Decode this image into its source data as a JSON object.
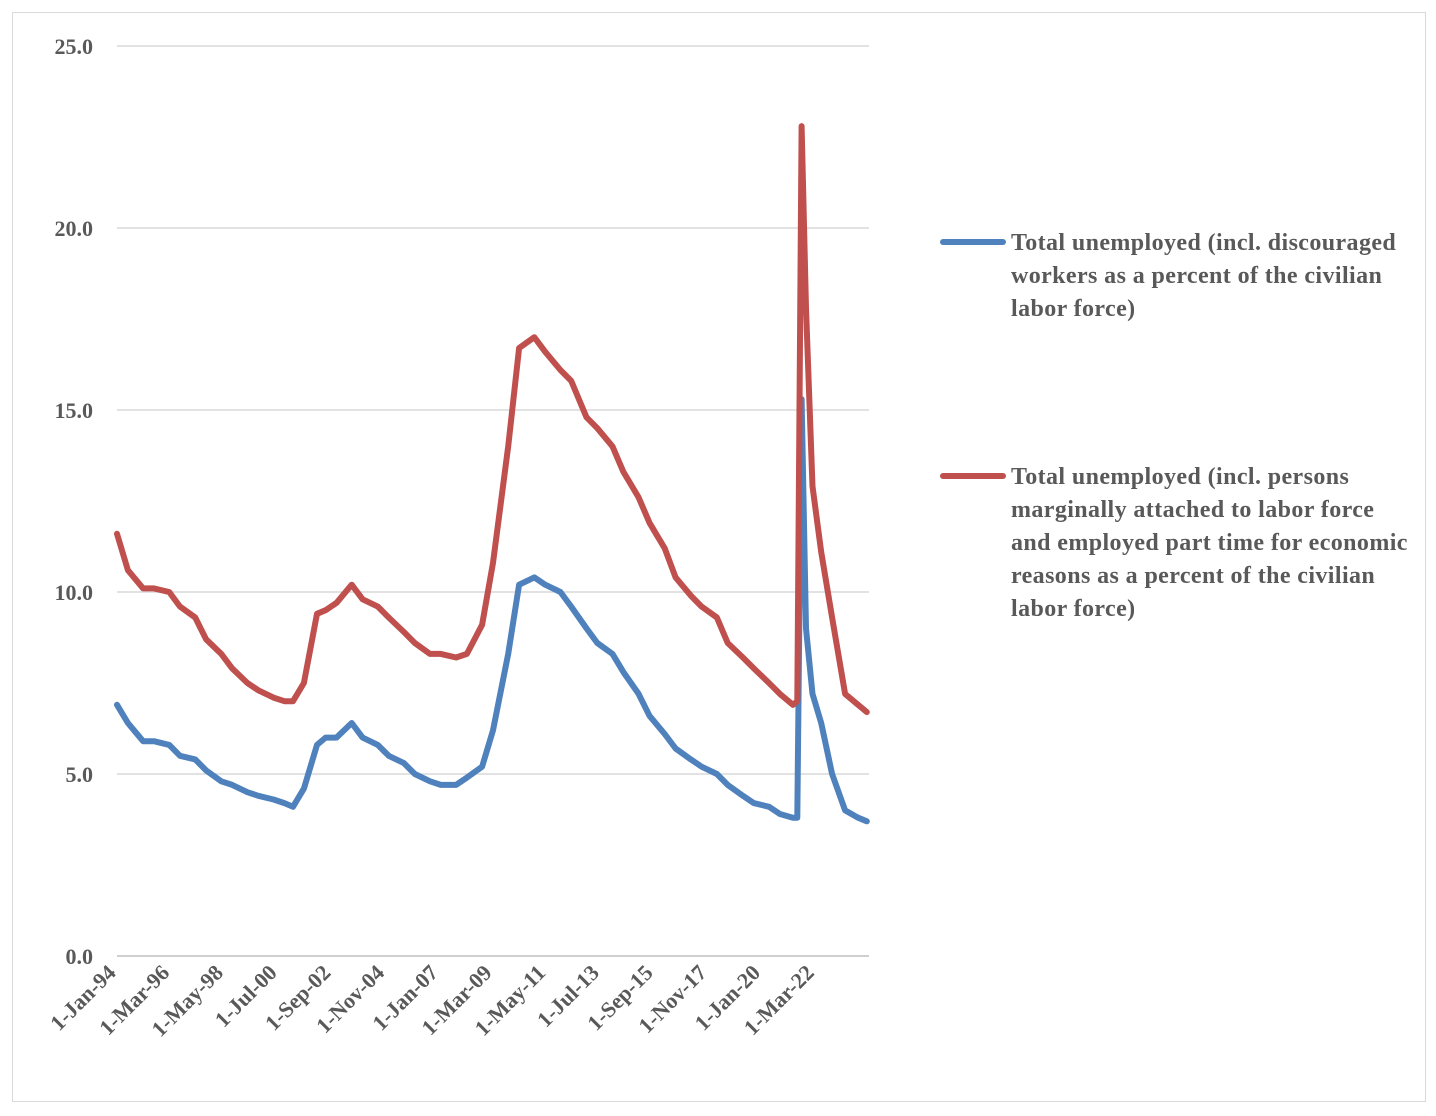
{
  "chart_data": {
    "type": "line",
    "title": "",
    "xlabel": "",
    "ylabel": "",
    "ylim": [
      0,
      25
    ],
    "y_ticks": [
      "0.0",
      "5.0",
      "10.0",
      "15.0",
      "20.0",
      "25.0"
    ],
    "x_ticks": [
      "1-Jan-94",
      "1-Mar-96",
      "1-May-98",
      "1-Jul-00",
      "1-Sep-02",
      "1-Nov-04",
      "1-Jan-07",
      "1-Mar-09",
      "1-May-11",
      "1-Jul-13",
      "1-Sep-15",
      "1-Nov-17",
      "1-Jan-20",
      "1-Mar-22"
    ],
    "grid": true,
    "legend_position": "right",
    "series": [
      {
        "name": "Total unemployed (incl. discouraged workers as a percent of the civilian labor force)",
        "color": "#4f81bd",
        "x": [
          "1994-01",
          "1994-06",
          "1995-01",
          "1995-06",
          "1996-01",
          "1996-06",
          "1997-01",
          "1997-06",
          "1998-01",
          "1998-06",
          "1999-01",
          "1999-06",
          "2000-01",
          "2000-06",
          "2000-10",
          "2001-03",
          "2001-09",
          "2002-01",
          "2002-06",
          "2003-01",
          "2003-06",
          "2004-01",
          "2004-06",
          "2005-01",
          "2005-06",
          "2006-01",
          "2006-06",
          "2007-01",
          "2007-06",
          "2008-01",
          "2008-06",
          "2009-01",
          "2009-06",
          "2010-01",
          "2010-06",
          "2011-01",
          "2011-06",
          "2012-01",
          "2012-06",
          "2013-01",
          "2013-06",
          "2014-01",
          "2014-06",
          "2015-01",
          "2015-06",
          "2016-01",
          "2016-06",
          "2017-01",
          "2017-06",
          "2018-01",
          "2018-06",
          "2019-01",
          "2019-06",
          "2019-12",
          "2020-02",
          "2020-04",
          "2020-06",
          "2020-09",
          "2021-01",
          "2021-06",
          "2021-12",
          "2022-06",
          "2022-10"
        ],
        "values": [
          6.9,
          6.4,
          5.9,
          5.9,
          5.8,
          5.5,
          5.4,
          5.1,
          4.8,
          4.7,
          4.5,
          4.4,
          4.3,
          4.2,
          4.1,
          4.6,
          5.8,
          6.0,
          6.0,
          6.4,
          6.0,
          5.8,
          5.5,
          5.3,
          5.0,
          4.8,
          4.7,
          4.7,
          4.9,
          5.2,
          6.2,
          8.3,
          10.2,
          10.4,
          10.2,
          10.0,
          9.6,
          9.0,
          8.6,
          8.3,
          7.8,
          7.2,
          6.6,
          6.1,
          5.7,
          5.4,
          5.2,
          5.0,
          4.7,
          4.4,
          4.2,
          4.1,
          3.9,
          3.8,
          3.8,
          15.3,
          9.0,
          7.2,
          6.4,
          5.0,
          4.0,
          3.8,
          3.7
        ]
      },
      {
        "name": "Total unemployed (incl. persons marginally attached to labor force and employed part time for economic reasons as a percent of the civilian labor force)",
        "color": "#c0504d",
        "x": [
          "1994-01",
          "1994-06",
          "1995-01",
          "1995-06",
          "1996-01",
          "1996-06",
          "1997-01",
          "1997-06",
          "1998-01",
          "1998-06",
          "1999-01",
          "1999-06",
          "2000-01",
          "2000-06",
          "2000-10",
          "2001-03",
          "2001-09",
          "2002-01",
          "2002-06",
          "2003-01",
          "2003-06",
          "2004-01",
          "2004-06",
          "2005-01",
          "2005-06",
          "2006-01",
          "2006-06",
          "2007-01",
          "2007-06",
          "2008-01",
          "2008-06",
          "2009-01",
          "2009-06",
          "2010-01",
          "2010-06",
          "2011-01",
          "2011-06",
          "2012-01",
          "2012-06",
          "2013-01",
          "2013-06",
          "2014-01",
          "2014-06",
          "2015-01",
          "2015-06",
          "2016-01",
          "2016-06",
          "2017-01",
          "2017-06",
          "2018-01",
          "2018-06",
          "2019-01",
          "2019-06",
          "2019-12",
          "2020-02",
          "2020-04",
          "2020-06",
          "2020-09",
          "2021-01",
          "2021-06",
          "2021-12",
          "2022-06",
          "2022-10"
        ],
        "values": [
          11.6,
          10.6,
          10.1,
          10.1,
          10.0,
          9.6,
          9.3,
          8.7,
          8.3,
          7.9,
          7.5,
          7.3,
          7.1,
          7.0,
          7.0,
          7.5,
          9.4,
          9.5,
          9.7,
          10.2,
          9.8,
          9.6,
          9.3,
          8.9,
          8.6,
          8.3,
          8.3,
          8.2,
          8.3,
          9.1,
          10.8,
          14.0,
          16.7,
          17.0,
          16.6,
          16.1,
          15.8,
          14.8,
          14.5,
          14.0,
          13.3,
          12.6,
          11.9,
          11.2,
          10.4,
          9.9,
          9.6,
          9.3,
          8.6,
          8.2,
          7.9,
          7.5,
          7.2,
          6.9,
          7.0,
          22.8,
          17.8,
          12.9,
          11.1,
          9.3,
          7.2,
          6.9,
          6.7
        ]
      }
    ]
  }
}
